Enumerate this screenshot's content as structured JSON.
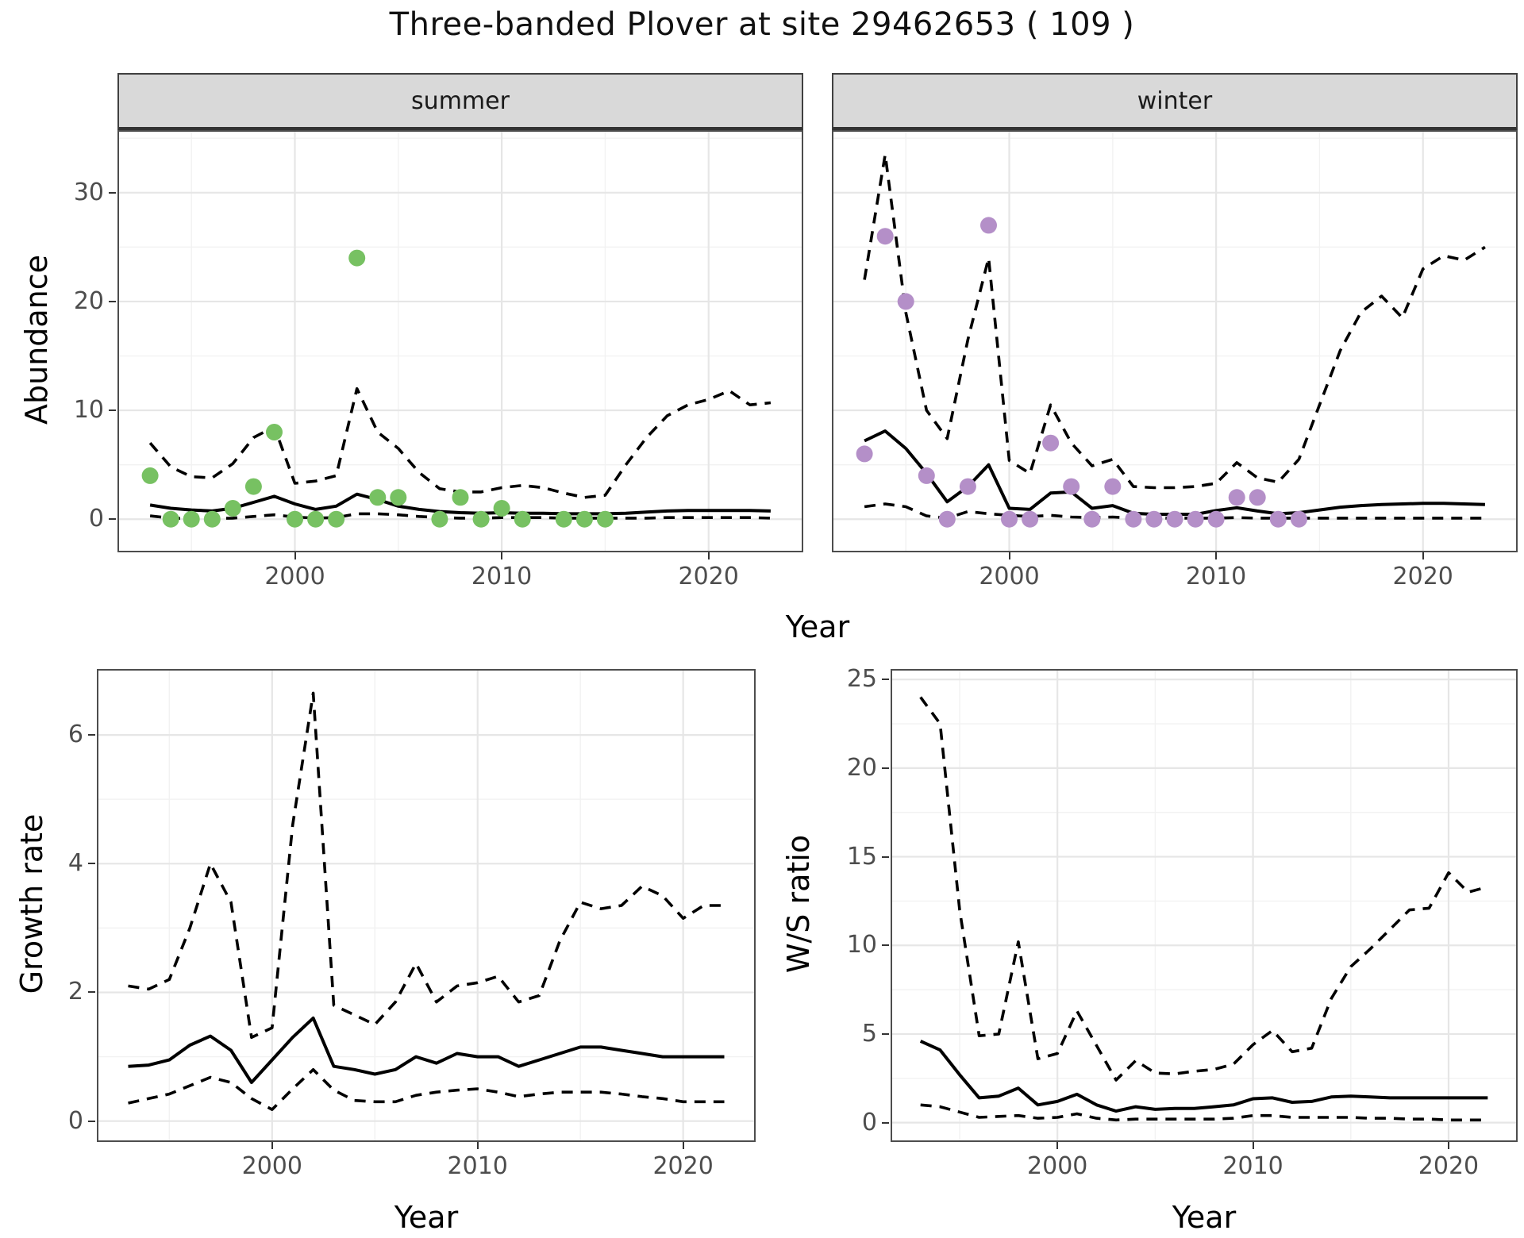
{
  "title": "Three-banded Plover at site 29462653 ( 109 )",
  "colors": {
    "summer_points": "#77C162",
    "winter_points": "#B48FC8",
    "line": "#000000",
    "grid_major": "#e6e6e6",
    "grid_minor": "#f2f2f2",
    "strip_bg": "#d9d9d9",
    "panel_border": "#4d4d4d",
    "tick_label": "#4d4d4d"
  },
  "axes": {
    "abundance_ylabel": "Abundance",
    "top_xlabel": "Year"
  },
  "chart_data": [
    {
      "id": "abundance-summer",
      "type": "line",
      "facet_label": "summer",
      "ylabel": "Abundance",
      "xlabel": "Year",
      "legend": "none",
      "grid": true,
      "x_domain": [
        1991.5,
        2024.5
      ],
      "y_domain": [
        -2.9,
        35.6
      ],
      "x_ticks": [
        2000,
        2010,
        2020
      ],
      "x_minor": [
        1995,
        2005,
        2015
      ],
      "y_ticks": [
        0,
        10,
        20,
        30
      ],
      "y_minor": [
        5,
        15,
        25,
        35
      ],
      "show_y_labels": true,
      "years": [
        1993,
        1994,
        1995,
        1996,
        1997,
        1998,
        1999,
        2000,
        2001,
        2002,
        2003,
        2004,
        2005,
        2006,
        2007,
        2008,
        2009,
        2010,
        2011,
        2012,
        2013,
        2014,
        2015,
        2016,
        2017,
        2018,
        2019,
        2020,
        2021,
        2022,
        2023
      ],
      "series": [
        {
          "name": "median",
          "style": "solid",
          "values": [
            1.3,
            1.0,
            0.85,
            0.75,
            1.0,
            1.55,
            2.1,
            1.4,
            0.9,
            1.2,
            2.3,
            1.8,
            1.2,
            0.9,
            0.7,
            0.6,
            0.55,
            0.6,
            0.55,
            0.55,
            0.5,
            0.5,
            0.5,
            0.55,
            0.65,
            0.75,
            0.8,
            0.8,
            0.8,
            0.8,
            0.75
          ]
        },
        {
          "name": "upper_ci",
          "style": "dashed",
          "values": [
            7.0,
            4.8,
            3.9,
            3.8,
            5.1,
            7.5,
            8.5,
            3.3,
            3.5,
            4.0,
            12.0,
            8.0,
            6.5,
            4.3,
            2.8,
            2.5,
            2.5,
            2.9,
            3.1,
            2.9,
            2.4,
            2.0,
            2.2,
            5.0,
            7.5,
            9.5,
            10.5,
            11.0,
            11.8,
            10.5,
            10.7
          ]
        },
        {
          "name": "lower_ci",
          "style": "dashed",
          "values": [
            0.3,
            0.1,
            0.05,
            0.05,
            0.1,
            0.25,
            0.4,
            0.2,
            0.1,
            0.15,
            0.5,
            0.5,
            0.4,
            0.25,
            0.15,
            0.1,
            0.1,
            0.15,
            0.15,
            0.15,
            0.1,
            0.1,
            0.1,
            0.1,
            0.1,
            0.15,
            0.15,
            0.15,
            0.15,
            0.15,
            0.1
          ]
        }
      ],
      "points": {
        "name": "observed_abundance",
        "color_key": "summer_points",
        "years": [
          1993,
          1994,
          1995,
          1996,
          1997,
          1998,
          1999,
          2000,
          2001,
          2002,
          2003,
          2004,
          2005,
          2007,
          2008,
          2009,
          2010,
          2011,
          2013,
          2014,
          2015
        ],
        "values": [
          4,
          0,
          0,
          0,
          1,
          3,
          8,
          0,
          0,
          0,
          24,
          2,
          2,
          0,
          2,
          0,
          1,
          0,
          0,
          0,
          0
        ]
      }
    },
    {
      "id": "abundance-winter",
      "type": "line",
      "facet_label": "winter",
      "ylabel": "Abundance",
      "xlabel": "Year",
      "legend": "none",
      "grid": true,
      "x_domain": [
        1991.5,
        2024.5
      ],
      "y_domain": [
        -2.9,
        35.6
      ],
      "x_ticks": [
        2000,
        2010,
        2020
      ],
      "x_minor": [
        1995,
        2005,
        2015
      ],
      "y_ticks": [
        0,
        10,
        20,
        30
      ],
      "y_minor": [
        5,
        15,
        25,
        35
      ],
      "show_y_labels": false,
      "years": [
        1993,
        1994,
        1995,
        1996,
        1997,
        1998,
        1999,
        2000,
        2001,
        2002,
        2003,
        2004,
        2005,
        2006,
        2007,
        2008,
        2009,
        2010,
        2011,
        2012,
        2013,
        2014,
        2015,
        2016,
        2017,
        2018,
        2019,
        2020,
        2021,
        2022,
        2023
      ],
      "series": [
        {
          "name": "median",
          "style": "solid",
          "values": [
            7.2,
            8.1,
            6.5,
            4.2,
            1.6,
            3.0,
            5.0,
            1.0,
            0.9,
            2.4,
            2.5,
            1.0,
            1.25,
            0.55,
            0.45,
            0.45,
            0.45,
            0.8,
            1.05,
            0.75,
            0.5,
            0.6,
            0.85,
            1.1,
            1.25,
            1.35,
            1.4,
            1.45,
            1.45,
            1.4,
            1.35
          ]
        },
        {
          "name": "upper_ci",
          "style": "dashed",
          "values": [
            22,
            33.5,
            19,
            10,
            7.4,
            16.5,
            24,
            5.4,
            4.2,
            10.5,
            7.0,
            4.9,
            5.5,
            3.0,
            2.9,
            2.9,
            3.0,
            3.3,
            5.2,
            3.8,
            3.4,
            5.5,
            10.5,
            15.5,
            19,
            20.5,
            18.5,
            23,
            24.2,
            23.8,
            25
          ]
        },
        {
          "name": "lower_ci",
          "style": "dashed",
          "values": [
            1.15,
            1.4,
            1.15,
            0.3,
            0.1,
            0.7,
            0.5,
            0.35,
            0.25,
            0.35,
            0.2,
            0.15,
            0.2,
            0.1,
            0.1,
            0.1,
            0.1,
            0.1,
            0.15,
            0.1,
            0.1,
            0.1,
            0.1,
            0.1,
            0.1,
            0.1,
            0.1,
            0.1,
            0.1,
            0.1,
            0.1
          ]
        }
      ],
      "points": {
        "name": "observed_abundance",
        "color_key": "winter_points",
        "years": [
          1993,
          1994,
          1995,
          1996,
          1997,
          1998,
          1999,
          2000,
          2001,
          2002,
          2003,
          2004,
          2005,
          2006,
          2007,
          2008,
          2009,
          2010,
          2011,
          2012,
          2013,
          2014
        ],
        "values": [
          6,
          26,
          20,
          4,
          0,
          3,
          27,
          0,
          0,
          7,
          3,
          0,
          3,
          0,
          0,
          0,
          0,
          0,
          2,
          2,
          0,
          0
        ]
      }
    },
    {
      "id": "growth-rate",
      "type": "line",
      "facet_label": null,
      "ylabel": "Growth rate",
      "xlabel": "Year",
      "legend": "none",
      "grid": true,
      "x_domain": [
        1991.55,
        2023.45
      ],
      "y_domain": [
        -0.3,
        7.0
      ],
      "x_ticks": [
        2000,
        2010,
        2020
      ],
      "x_minor": [
        1995,
        2005,
        2015
      ],
      "y_ticks": [
        0,
        2,
        4,
        6
      ],
      "y_minor": [
        1,
        3,
        5
      ],
      "show_y_labels": true,
      "years": [
        1993,
        1994,
        1995,
        1996,
        1997,
        1998,
        1999,
        2000,
        2001,
        2002,
        2003,
        2004,
        2005,
        2006,
        2007,
        2008,
        2009,
        2010,
        2011,
        2012,
        2013,
        2014,
        2015,
        2016,
        2017,
        2018,
        2019,
        2020,
        2021,
        2022
      ],
      "series": [
        {
          "name": "median",
          "style": "solid",
          "values": [
            0.85,
            0.87,
            0.95,
            1.18,
            1.32,
            1.1,
            0.6,
            0.95,
            1.3,
            1.6,
            0.85,
            0.8,
            0.73,
            0.8,
            1.0,
            0.9,
            1.05,
            1.0,
            1.0,
            0.85,
            0.95,
            1.05,
            1.15,
            1.15,
            1.1,
            1.05,
            1.0,
            1.0,
            1.0,
            1.0
          ]
        },
        {
          "name": "upper_ci",
          "style": "dashed",
          "values": [
            2.1,
            2.05,
            2.2,
            3.0,
            4.0,
            3.4,
            1.3,
            1.45,
            4.6,
            6.65,
            1.8,
            1.65,
            1.5,
            1.85,
            2.45,
            1.85,
            2.1,
            2.15,
            2.25,
            1.85,
            1.95,
            2.8,
            3.4,
            3.3,
            3.35,
            3.65,
            3.5,
            3.15,
            3.35,
            3.35
          ]
        },
        {
          "name": "lower_ci",
          "style": "dashed",
          "values": [
            0.28,
            0.35,
            0.42,
            0.55,
            0.68,
            0.6,
            0.35,
            0.18,
            0.5,
            0.8,
            0.48,
            0.32,
            0.3,
            0.3,
            0.4,
            0.45,
            0.48,
            0.5,
            0.45,
            0.38,
            0.42,
            0.45,
            0.45,
            0.45,
            0.42,
            0.38,
            0.35,
            0.3,
            0.3,
            0.3
          ]
        }
      ],
      "points": null
    },
    {
      "id": "ws-ratio",
      "type": "line",
      "facet_label": null,
      "ylabel": "W/S ratio",
      "xlabel": "Year",
      "legend": "none",
      "grid": true,
      "x_domain": [
        1991.55,
        2023.45
      ],
      "y_domain": [
        -1.0,
        25.5
      ],
      "x_ticks": [
        2000,
        2010,
        2020
      ],
      "x_minor": [
        1995,
        2005,
        2015
      ],
      "y_ticks": [
        0,
        5,
        10,
        15,
        20,
        25
      ],
      "y_minor": [
        2.5,
        7.5,
        12.5,
        17.5,
        22.5
      ],
      "show_y_labels": true,
      "years": [
        1993,
        1994,
        1995,
        1996,
        1997,
        1998,
        1999,
        2000,
        2001,
        2002,
        2003,
        2004,
        2005,
        2006,
        2007,
        2008,
        2009,
        2010,
        2011,
        2012,
        2013,
        2014,
        2015,
        2016,
        2017,
        2018,
        2019,
        2020,
        2021,
        2022
      ],
      "series": [
        {
          "name": "median",
          "style": "solid",
          "values": [
            4.6,
            4.1,
            2.7,
            1.4,
            1.5,
            1.95,
            1.0,
            1.2,
            1.6,
            1.0,
            0.65,
            0.9,
            0.75,
            0.8,
            0.8,
            0.9,
            1.0,
            1.35,
            1.4,
            1.15,
            1.2,
            1.45,
            1.5,
            1.45,
            1.4,
            1.4,
            1.4,
            1.4,
            1.4,
            1.4
          ]
        },
        {
          "name": "upper_ci",
          "style": "dashed",
          "values": [
            24,
            22.5,
            12,
            4.9,
            5.0,
            10.2,
            3.6,
            3.9,
            6.3,
            4.35,
            2.4,
            3.5,
            2.8,
            2.75,
            2.9,
            3.0,
            3.3,
            4.4,
            5.2,
            4.0,
            4.2,
            7.0,
            8.8,
            9.8,
            10.9,
            12.0,
            12.1,
            14.1,
            13.0,
            13.3
          ]
        },
        {
          "name": "lower_ci",
          "style": "dashed",
          "values": [
            1.0,
            0.9,
            0.6,
            0.3,
            0.35,
            0.4,
            0.25,
            0.3,
            0.5,
            0.25,
            0.15,
            0.2,
            0.2,
            0.2,
            0.2,
            0.2,
            0.25,
            0.4,
            0.4,
            0.3,
            0.3,
            0.3,
            0.3,
            0.25,
            0.25,
            0.2,
            0.2,
            0.15,
            0.15,
            0.15
          ]
        }
      ],
      "points": null
    }
  ]
}
